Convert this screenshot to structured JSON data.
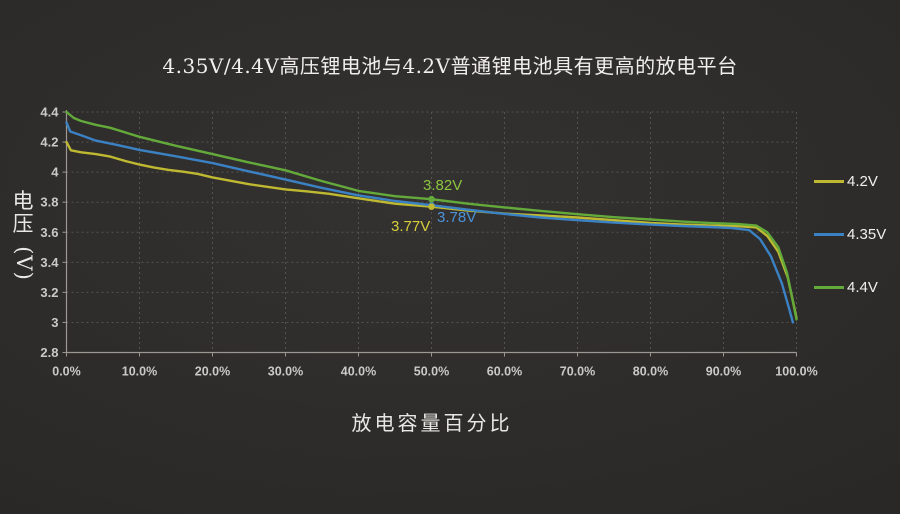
{
  "palette": {
    "background": "#2c2a28",
    "grid": "#55534f",
    "axis": "#9b9893",
    "tick_text": "#cbc9c5",
    "title_text": "#f1efeb"
  },
  "chart_data": {
    "type": "line",
    "title": "4.35V/4.4V高压锂电池与4.2V普通锂电池具有更高的放电平台",
    "xlabel": "放电容量百分比",
    "ylabel": "电压(V)",
    "ylabel_parts": [
      "电",
      "压",
      "(V)"
    ],
    "xlim": [
      0,
      100
    ],
    "ylim": [
      2.8,
      4.4
    ],
    "grid": "dashed",
    "legend_position": "right",
    "x_ticks": {
      "values": [
        0,
        10,
        20,
        30,
        40,
        50,
        60,
        70,
        80,
        90,
        100
      ],
      "labels": [
        "0.0%",
        "10.0%",
        "20.0%",
        "30.0%",
        "40.0%",
        "50.0%",
        "60.0%",
        "70.0%",
        "80.0%",
        "90.0%",
        "100.0%"
      ]
    },
    "y_ticks": {
      "values": [
        2.8,
        3,
        3.2,
        3.4,
        3.6,
        3.8,
        4,
        4.2,
        4.4
      ],
      "labels": [
        "2.8",
        "3",
        "3.2",
        "3.4",
        "3.6",
        "3.8",
        "4",
        "4.2",
        "4.4"
      ]
    },
    "series": [
      {
        "name": "4.2V",
        "color": "#bfb932",
        "points": [
          [
            0,
            4.2
          ],
          [
            0.6,
            4.145
          ],
          [
            2,
            4.132
          ],
          [
            4,
            4.12
          ],
          [
            6,
            4.103
          ],
          [
            8,
            4.075
          ],
          [
            10,
            4.05
          ],
          [
            12,
            4.03
          ],
          [
            14,
            4.015
          ],
          [
            16,
            4.003
          ],
          [
            18,
            3.988
          ],
          [
            20,
            3.965
          ],
          [
            25,
            3.92
          ],
          [
            30,
            3.885
          ],
          [
            33,
            3.872
          ],
          [
            36,
            3.856
          ],
          [
            40,
            3.826
          ],
          [
            45,
            3.79
          ],
          [
            50,
            3.77
          ],
          [
            55,
            3.744
          ],
          [
            60,
            3.724
          ],
          [
            65,
            3.712
          ],
          [
            70,
            3.698
          ],
          [
            75,
            3.68
          ],
          [
            80,
            3.662
          ],
          [
            84,
            3.652
          ],
          [
            88,
            3.645
          ],
          [
            92,
            3.64
          ],
          [
            94.5,
            3.632
          ],
          [
            96,
            3.575
          ],
          [
            97.5,
            3.47
          ],
          [
            98.8,
            3.3
          ],
          [
            99.6,
            3.12
          ],
          [
            100,
            3.03
          ]
        ]
      },
      {
        "name": "4.35V",
        "color": "#3b82c4",
        "points": [
          [
            0,
            4.33
          ],
          [
            0.5,
            4.27
          ],
          [
            2,
            4.245
          ],
          [
            4,
            4.21
          ],
          [
            7,
            4.18
          ],
          [
            10,
            4.148
          ],
          [
            15,
            4.105
          ],
          [
            20,
            4.06
          ],
          [
            25,
            4.005
          ],
          [
            30,
            3.95
          ],
          [
            35,
            3.895
          ],
          [
            40,
            3.845
          ],
          [
            45,
            3.808
          ],
          [
            50,
            3.78
          ],
          [
            55,
            3.75
          ],
          [
            60,
            3.722
          ],
          [
            65,
            3.698
          ],
          [
            70,
            3.68
          ],
          [
            75,
            3.664
          ],
          [
            80,
            3.651
          ],
          [
            84,
            3.642
          ],
          [
            88,
            3.635
          ],
          [
            91,
            3.629
          ],
          [
            93.5,
            3.614
          ],
          [
            95,
            3.555
          ],
          [
            96.5,
            3.44
          ],
          [
            98,
            3.26
          ],
          [
            99,
            3.09
          ],
          [
            99.5,
            3.0
          ]
        ]
      },
      {
        "name": "4.4V",
        "color": "#64aa3a",
        "points": [
          [
            0,
            4.4
          ],
          [
            1,
            4.36
          ],
          [
            2,
            4.34
          ],
          [
            4,
            4.315
          ],
          [
            6,
            4.295
          ],
          [
            10,
            4.235
          ],
          [
            15,
            4.175
          ],
          [
            20,
            4.12
          ],
          [
            25,
            4.065
          ],
          [
            30,
            4.012
          ],
          [
            35,
            3.94
          ],
          [
            40,
            3.875
          ],
          [
            45,
            3.84
          ],
          [
            50,
            3.82
          ],
          [
            55,
            3.79
          ],
          [
            60,
            3.765
          ],
          [
            65,
            3.742
          ],
          [
            70,
            3.72
          ],
          [
            75,
            3.7
          ],
          [
            80,
            3.685
          ],
          [
            84,
            3.672
          ],
          [
            88,
            3.662
          ],
          [
            92,
            3.654
          ],
          [
            94.5,
            3.644
          ],
          [
            96,
            3.6
          ],
          [
            97.5,
            3.5
          ],
          [
            98.7,
            3.33
          ],
          [
            99.5,
            3.14
          ],
          [
            100,
            3.02
          ]
        ]
      }
    ],
    "markers": [
      {
        "series": 1,
        "x": 50,
        "v": 3.78
      },
      {
        "series": 0,
        "x": 50,
        "v": 3.77
      },
      {
        "series": 2,
        "x": 50,
        "v": 3.82
      }
    ],
    "annotations": [
      {
        "text": "3.82V",
        "color": "#8cc63e",
        "at": {
          "x": 50,
          "v": 3.82
        }
      },
      {
        "text": "3.78V",
        "color": "#4a93d9",
        "at": {
          "x": 50,
          "v": 3.78
        }
      },
      {
        "text": "3.77V",
        "color": "#d8ce3c",
        "at": {
          "x": 50,
          "v": 3.77
        }
      }
    ]
  }
}
